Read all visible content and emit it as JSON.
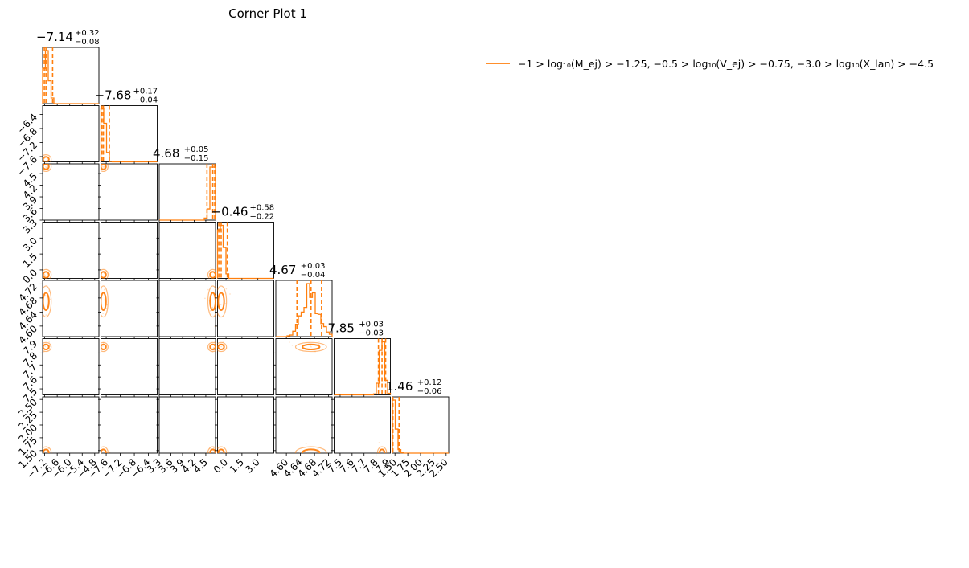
{
  "figure": {
    "title": "Corner Plot 1",
    "accent_color": "#ff7f0e"
  },
  "legend": {
    "label": "−1 > log₁₀(M_ej) > −1.25,  −0.5 > log₁₀(V_ej) > −0.75,  −3.0 > log₁₀(X_lan) > −4.5",
    "color": "#ff7f0e",
    "placement": "upper-right"
  },
  "chart_data": {
    "type": "corner",
    "title": "Corner Plot 1",
    "series": [
      {
        "name": "−1 > log₁₀(M_ej) > −1.25,  −0.5 > log₁₀(V_ej) > −0.75,  −3.0 > log₁₀(X_lan) > −4.5",
        "color": "#ff7f0e"
      }
    ],
    "parameters": [
      {
        "median": -7.14,
        "plus": 0.32,
        "minus": 0.08,
        "range": [
          -7.3,
          -4.6
        ],
        "ticks": [
          -7.2,
          -6.6,
          -6.0,
          -5.4,
          -4.8
        ],
        "tick_labels": [
          "−7.2",
          "−6.6",
          "−6.0",
          "−5.4",
          "−4.8"
        ],
        "title_main": "−7.14",
        "title_plus": "+0.32",
        "title_minus": "−0.08"
      },
      {
        "median": -7.68,
        "plus": 0.17,
        "minus": 0.04,
        "range": [
          -7.75,
          -6.15
        ],
        "ticks": [
          -7.6,
          -7.2,
          -6.8,
          -6.4
        ],
        "tick_labels": [
          "−7.6",
          "−7.2",
          "−6.8",
          "−6.4"
        ],
        "title_main": "−7.68",
        "title_plus": "+0.17",
        "title_minus": "−0.04"
      },
      {
        "median": 4.68,
        "plus": 0.05,
        "minus": 0.15,
        "range": [
          3.3,
          4.75
        ],
        "ticks": [
          3.3,
          3.6,
          3.9,
          4.2,
          4.5
        ],
        "tick_labels": [
          "3.3",
          "3.6",
          "3.9",
          "4.2",
          "4.5"
        ],
        "title_main": "4.68",
        "title_plus": "+0.05",
        "title_minus": "−0.15"
      },
      {
        "median": -0.46,
        "plus": 0.58,
        "minus": 0.22,
        "range": [
          -0.8,
          4.5
        ],
        "ticks": [
          0.0,
          1.5,
          3.0
        ],
        "tick_labels": [
          "0.0",
          "1.5",
          "3.0"
        ],
        "title_main": "−0.46",
        "title_plus": "+0.58",
        "title_minus": "−0.22"
      },
      {
        "median": 4.67,
        "plus": 0.03,
        "minus": 0.04,
        "range": [
          4.57,
          4.73
        ],
        "ticks": [
          4.6,
          4.64,
          4.68,
          4.72
        ],
        "tick_labels": [
          "4.60",
          "4.64",
          "4.68",
          "4.72"
        ],
        "title_main": "4.67",
        "title_plus": "+0.03",
        "title_minus": "−0.04"
      },
      {
        "median": 7.85,
        "plus": 0.03,
        "minus": 0.03,
        "range": [
          7.45,
          7.92
        ],
        "ticks": [
          7.5,
          7.6,
          7.7,
          7.8,
          7.9
        ],
        "tick_labels": [
          "7.5",
          "7.6",
          "7.7",
          "7.8",
          "7.9"
        ],
        "title_main": "7.85",
        "title_plus": "+0.03",
        "title_minus": "−0.03"
      },
      {
        "median": 1.46,
        "plus": 0.12,
        "minus": 0.06,
        "range": [
          1.45,
          2.55
        ],
        "ticks": [
          1.5,
          1.75,
          2.0,
          2.25,
          2.5
        ],
        "tick_labels": [
          "1.50",
          "1.75",
          "2.00",
          "2.25",
          "2.50"
        ],
        "title_main": "1.46",
        "title_plus": "+0.12",
        "title_minus": "−0.06"
      }
    ]
  }
}
